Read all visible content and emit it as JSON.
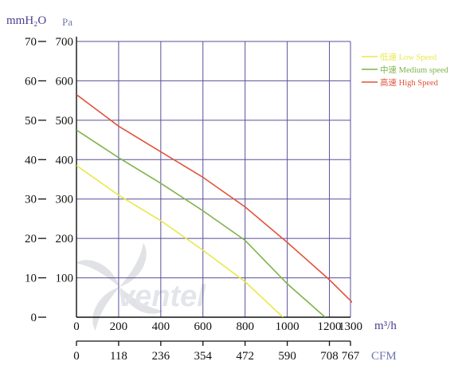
{
  "chart_data": {
    "type": "line",
    "title": "",
    "units": {
      "mmH2O": "mmH₂O",
      "pa": "Pa",
      "m3h": "m³/h",
      "cfm": "CFM"
    },
    "y_mmh2o_ticks": [
      "70",
      "60",
      "50",
      "40",
      "30",
      "20",
      "10",
      "0"
    ],
    "y_pa_ticks": [
      "700",
      "600",
      "500",
      "400",
      "300",
      "200",
      "100"
    ],
    "x_m3h_ticks": [
      "0",
      "200",
      "400",
      "600",
      "800",
      "1000",
      "1200",
      "1300"
    ],
    "x_cfm_ticks": [
      "0",
      "118",
      "236",
      "354",
      "472",
      "590",
      "708",
      "767"
    ],
    "xlim": [
      0,
      1300
    ],
    "ylim": [
      0,
      700
    ],
    "grid": true,
    "legend_position": "top-right",
    "watermark": "ventel",
    "series": [
      {
        "name": "低速 Low Speed",
        "color": "#e8e84a",
        "points": [
          [
            0,
            385
          ],
          [
            200,
            310
          ],
          [
            400,
            245
          ],
          [
            600,
            170
          ],
          [
            800,
            90
          ],
          [
            980,
            0
          ]
        ]
      },
      {
        "name": "中速 Medium speed",
        "color": "#7fb34a",
        "points": [
          [
            0,
            475
          ],
          [
            200,
            405
          ],
          [
            400,
            340
          ],
          [
            600,
            270
          ],
          [
            800,
            195
          ],
          [
            1000,
            85
          ],
          [
            1180,
            0
          ]
        ]
      },
      {
        "name": "高速 High Speed",
        "color": "#e2533a",
        "points": [
          [
            0,
            565
          ],
          [
            200,
            485
          ],
          [
            400,
            420
          ],
          [
            600,
            355
          ],
          [
            800,
            280
          ],
          [
            1000,
            190
          ],
          [
            1200,
            95
          ],
          [
            1380,
            0
          ]
        ]
      }
    ]
  }
}
